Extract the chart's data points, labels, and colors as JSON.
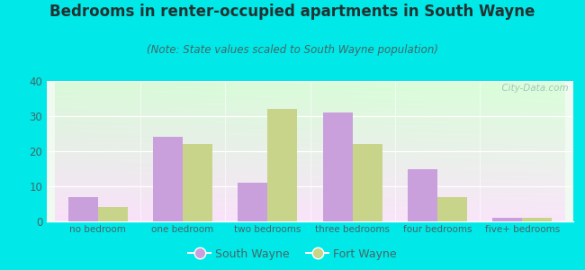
{
  "title": "Bedrooms in renter-occupied apartments in South Wayne",
  "subtitle": "(Note: State values scaled to South Wayne population)",
  "categories": [
    "no bedroom",
    "one bedroom",
    "two bedrooms",
    "three bedrooms",
    "four bedrooms",
    "five+ bedrooms"
  ],
  "south_wayne": [
    7,
    24,
    11,
    31,
    15,
    1
  ],
  "fort_wayne": [
    4,
    22,
    32,
    22,
    7,
    1
  ],
  "sw_color": "#c9a0dc",
  "fw_color": "#c8d48a",
  "background_outer": "#00e8e8",
  "ylim": [
    0,
    40
  ],
  "yticks": [
    0,
    10,
    20,
    30,
    40
  ],
  "bar_width": 0.35,
  "legend_sw": "South Wayne",
  "legend_fw": "Fort Wayne",
  "title_fontsize": 12,
  "subtitle_fontsize": 8.5,
  "watermark": "  City-Data.com",
  "tick_color": "#446666",
  "title_color": "#223333"
}
